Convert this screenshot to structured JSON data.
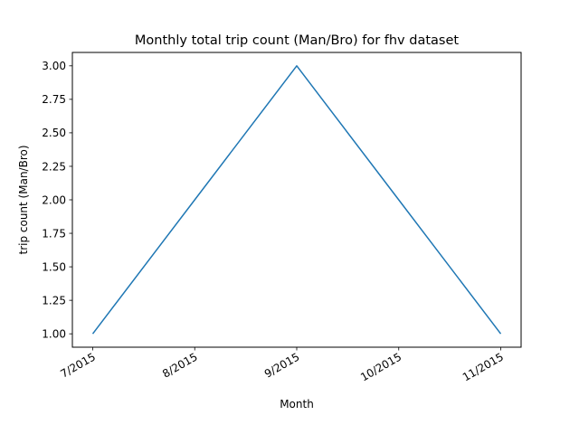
{
  "chart_data": {
    "type": "line",
    "title": "Monthly total trip count (Man/Bro) for fhv dataset",
    "xlabel": "Month",
    "ylabel": "trip count (Man/Bro)",
    "x": [
      "7/2015",
      "8/2015",
      "9/2015",
      "10/2015",
      "11/2015"
    ],
    "series": [
      {
        "values": [
          1,
          2,
          3,
          2,
          1
        ]
      }
    ],
    "x_tick_labels": [
      "7/2015",
      "8/2015",
      "9/2015",
      "10/2015",
      "11/2015"
    ],
    "y_tick_labels": [
      "1.00",
      "1.25",
      "1.50",
      "1.75",
      "2.00",
      "2.25",
      "2.50",
      "2.75",
      "3.00"
    ],
    "y_ticks": [
      1.0,
      1.25,
      1.5,
      1.75,
      2.0,
      2.25,
      2.5,
      2.75,
      3.0
    ],
    "ylim": [
      0.9,
      3.1
    ],
    "grid": false,
    "line_color": "#1f77b4"
  }
}
